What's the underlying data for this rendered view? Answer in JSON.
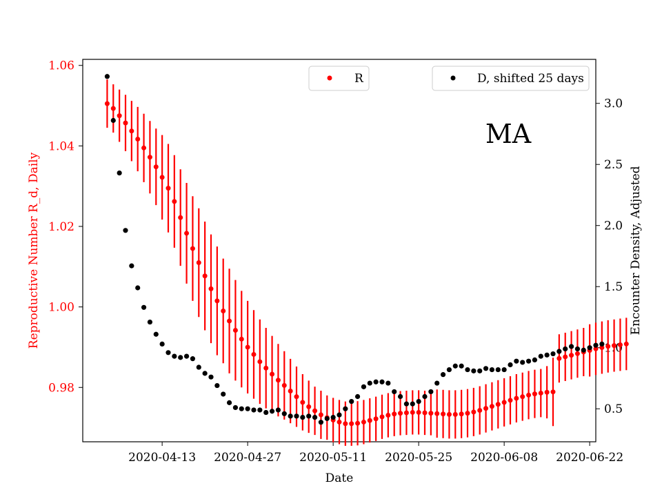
{
  "chart_data": {
    "type": "scatter",
    "annotation": "MA",
    "xlabel": "Date",
    "ylabel_left": "Reproductive Number R_d, Daily",
    "ylabel_right": "Encounter Density, Adjusted",
    "x_start_date": "2020-04-04",
    "x_step_days": 1,
    "xlim_days": [
      -4,
      80
    ],
    "x_ticks": [
      {
        "day": 9,
        "label": "2020-04-13"
      },
      {
        "day": 23,
        "label": "2020-04-27"
      },
      {
        "day": 37,
        "label": "2020-05-11"
      },
      {
        "day": 51,
        "label": "2020-05-25"
      },
      {
        "day": 65,
        "label": "2020-06-08"
      },
      {
        "day": 79,
        "label": "2020-06-22"
      }
    ],
    "ylim_left": [
      0.9665,
      1.0615
    ],
    "y_ticks_left": [
      {
        "value": 0.98,
        "label": "0.98"
      },
      {
        "value": 1.0,
        "label": "1.00"
      },
      {
        "value": 1.02,
        "label": "1.02"
      },
      {
        "value": 1.04,
        "label": "1.04"
      },
      {
        "value": 1.06,
        "label": "1.06"
      }
    ],
    "ylim_right": [
      0.23,
      3.36
    ],
    "y_ticks_right": [
      {
        "value": 0.5,
        "label": "0.5"
      },
      {
        "value": 1.0,
        "label": "1.0"
      },
      {
        "value": 1.5,
        "label": "1.5"
      },
      {
        "value": 2.0,
        "label": "2.0"
      },
      {
        "value": 2.5,
        "label": "2.5"
      },
      {
        "value": 3.0,
        "label": "3.0"
      }
    ],
    "series": [
      {
        "name": "R",
        "axis": "left",
        "color": "#ff0000",
        "error_bars": true,
        "points": [
          [
            0,
            1.0505,
            0.006
          ],
          [
            1,
            1.0493,
            0.006
          ],
          [
            2,
            1.0475,
            0.0065
          ],
          [
            3,
            1.0457,
            0.007
          ],
          [
            4,
            1.0437,
            0.0075
          ],
          [
            5,
            1.0417,
            0.008
          ],
          [
            6,
            1.0395,
            0.0085
          ],
          [
            7,
            1.0372,
            0.009
          ],
          [
            8,
            1.0348,
            0.0095
          ],
          [
            9,
            1.0322,
            0.0105
          ],
          [
            10,
            1.0295,
            0.011
          ],
          [
            11,
            1.0262,
            0.0115
          ],
          [
            12,
            1.0222,
            0.012
          ],
          [
            13,
            1.0183,
            0.0125
          ],
          [
            14,
            1.0145,
            0.013
          ],
          [
            15,
            1.011,
            0.0135
          ],
          [
            16,
            1.0077,
            0.0135
          ],
          [
            17,
            1.0045,
            0.0135
          ],
          [
            18,
            1.0015,
            0.0135
          ],
          [
            19,
            0.999,
            0.013
          ],
          [
            20,
            0.9965,
            0.013
          ],
          [
            21,
            0.9942,
            0.0125
          ],
          [
            22,
            0.992,
            0.012
          ],
          [
            23,
            0.99,
            0.0115
          ],
          [
            24,
            0.9882,
            0.011
          ],
          [
            25,
            0.9864,
            0.0105
          ],
          [
            26,
            0.9848,
            0.01
          ],
          [
            27,
            0.9833,
            0.0095
          ],
          [
            28,
            0.9818,
            0.009
          ],
          [
            29,
            0.9805,
            0.0085
          ],
          [
            30,
            0.9791,
            0.008
          ],
          [
            31,
            0.9777,
            0.0075
          ],
          [
            32,
            0.9763,
            0.007
          ],
          [
            33,
            0.9752,
            0.0065
          ],
          [
            34,
            0.9742,
            0.006
          ],
          [
            35,
            0.9732,
            0.006
          ],
          [
            36,
            0.9725,
            0.0055
          ],
          [
            37,
            0.9719,
            0.0055
          ],
          [
            38,
            0.9714,
            0.0055
          ],
          [
            39,
            0.971,
            0.0055
          ],
          [
            40,
            0.971,
            0.0055
          ],
          [
            41,
            0.9711,
            0.0055
          ],
          [
            42,
            0.9714,
            0.0055
          ],
          [
            43,
            0.9718,
            0.0055
          ],
          [
            44,
            0.9722,
            0.0055
          ],
          [
            45,
            0.9727,
            0.0055
          ],
          [
            46,
            0.9731,
            0.0055
          ],
          [
            47,
            0.9734,
            0.0055
          ],
          [
            48,
            0.9736,
            0.0055
          ],
          [
            49,
            0.9737,
            0.0055
          ],
          [
            50,
            0.9738,
            0.0055
          ],
          [
            51,
            0.9738,
            0.0055
          ],
          [
            52,
            0.9737,
            0.0055
          ],
          [
            53,
            0.9736,
            0.0055
          ],
          [
            54,
            0.9735,
            0.006
          ],
          [
            55,
            0.9734,
            0.006
          ],
          [
            56,
            0.9733,
            0.006
          ],
          [
            57,
            0.9733,
            0.006
          ],
          [
            58,
            0.9734,
            0.006
          ],
          [
            59,
            0.9736,
            0.006
          ],
          [
            60,
            0.9739,
            0.006
          ],
          [
            61,
            0.9743,
            0.006
          ],
          [
            62,
            0.9748,
            0.006
          ],
          [
            63,
            0.9753,
            0.006
          ],
          [
            64,
            0.9758,
            0.006
          ],
          [
            65,
            0.9763,
            0.006
          ],
          [
            66,
            0.9768,
            0.006
          ],
          [
            67,
            0.9773,
            0.006
          ],
          [
            68,
            0.9777,
            0.006
          ],
          [
            69,
            0.9781,
            0.006
          ],
          [
            70,
            0.9784,
            0.006
          ],
          [
            71,
            0.9786,
            0.006
          ],
          [
            72,
            0.9788,
            0.0065
          ],
          [
            73,
            0.9789,
            0.0085
          ],
          [
            74,
            0.9872,
            0.006
          ],
          [
            75,
            0.9876,
            0.006
          ],
          [
            76,
            0.988,
            0.006
          ],
          [
            77,
            0.9884,
            0.006
          ],
          [
            78,
            0.9888,
            0.006
          ],
          [
            79,
            0.9892,
            0.0065
          ],
          [
            80,
            0.9896,
            0.0065
          ],
          [
            81,
            0.9899,
            0.0065
          ],
          [
            82,
            0.9902,
            0.0065
          ],
          [
            83,
            0.9904,
            0.0065
          ],
          [
            84,
            0.9906,
            0.0065
          ],
          [
            85,
            0.9908,
            0.0065
          ]
        ]
      },
      {
        "name": "D, shifted 25 days",
        "axis": "right",
        "color": "#000000",
        "error_bars": false,
        "points": [
          [
            0,
            3.22
          ],
          [
            1,
            2.86
          ],
          [
            2,
            2.43
          ],
          [
            3,
            1.96
          ],
          [
            4,
            1.67
          ],
          [
            5,
            1.49
          ],
          [
            6,
            1.33
          ],
          [
            7,
            1.21
          ],
          [
            8,
            1.11
          ],
          [
            9,
            1.03
          ],
          [
            10,
            0.96
          ],
          [
            11,
            0.93
          ],
          [
            12,
            0.92
          ],
          [
            13,
            0.93
          ],
          [
            14,
            0.91
          ],
          [
            15,
            0.84
          ],
          [
            16,
            0.79
          ],
          [
            17,
            0.76
          ],
          [
            18,
            0.69
          ],
          [
            19,
            0.62
          ],
          [
            20,
            0.55
          ],
          [
            21,
            0.51
          ],
          [
            22,
            0.5
          ],
          [
            23,
            0.5
          ],
          [
            24,
            0.49
          ],
          [
            25,
            0.49
          ],
          [
            26,
            0.47
          ],
          [
            27,
            0.48
          ],
          [
            28,
            0.49
          ],
          [
            29,
            0.46
          ],
          [
            30,
            0.44
          ],
          [
            31,
            0.44
          ],
          [
            32,
            0.43
          ],
          [
            33,
            0.44
          ],
          [
            34,
            0.43
          ],
          [
            35,
            0.39
          ],
          [
            36,
            0.42
          ],
          [
            37,
            0.43
          ],
          [
            38,
            0.45
          ],
          [
            39,
            0.5
          ],
          [
            40,
            0.56
          ],
          [
            41,
            0.6
          ],
          [
            42,
            0.68
          ],
          [
            43,
            0.71
          ],
          [
            44,
            0.72
          ],
          [
            45,
            0.72
          ],
          [
            46,
            0.71
          ],
          [
            47,
            0.64
          ],
          [
            48,
            0.6
          ],
          [
            49,
            0.54
          ],
          [
            50,
            0.54
          ],
          [
            51,
            0.56
          ],
          [
            52,
            0.6
          ],
          [
            53,
            0.64
          ],
          [
            54,
            0.71
          ],
          [
            55,
            0.78
          ],
          [
            56,
            0.82
          ],
          [
            57,
            0.85
          ],
          [
            58,
            0.85
          ],
          [
            59,
            0.82
          ],
          [
            60,
            0.81
          ],
          [
            61,
            0.81
          ],
          [
            62,
            0.83
          ],
          [
            63,
            0.82
          ],
          [
            64,
            0.82
          ],
          [
            65,
            0.82
          ],
          [
            66,
            0.86
          ],
          [
            67,
            0.89
          ],
          [
            68,
            0.88
          ],
          [
            69,
            0.89
          ],
          [
            70,
            0.9
          ],
          [
            71,
            0.93
          ],
          [
            72,
            0.94
          ],
          [
            73,
            0.95
          ],
          [
            74,
            0.97
          ],
          [
            75,
            0.99
          ],
          [
            76,
            1.01
          ],
          [
            77,
            0.99
          ],
          [
            78,
            0.98
          ],
          [
            79,
            1.0
          ],
          [
            80,
            1.02
          ],
          [
            81,
            1.03
          ]
        ]
      }
    ],
    "legends": [
      {
        "entries": [
          "R"
        ],
        "placement": "top-center"
      },
      {
        "entries": [
          "D, shifted 25 days"
        ],
        "placement": "top-right"
      }
    ]
  }
}
